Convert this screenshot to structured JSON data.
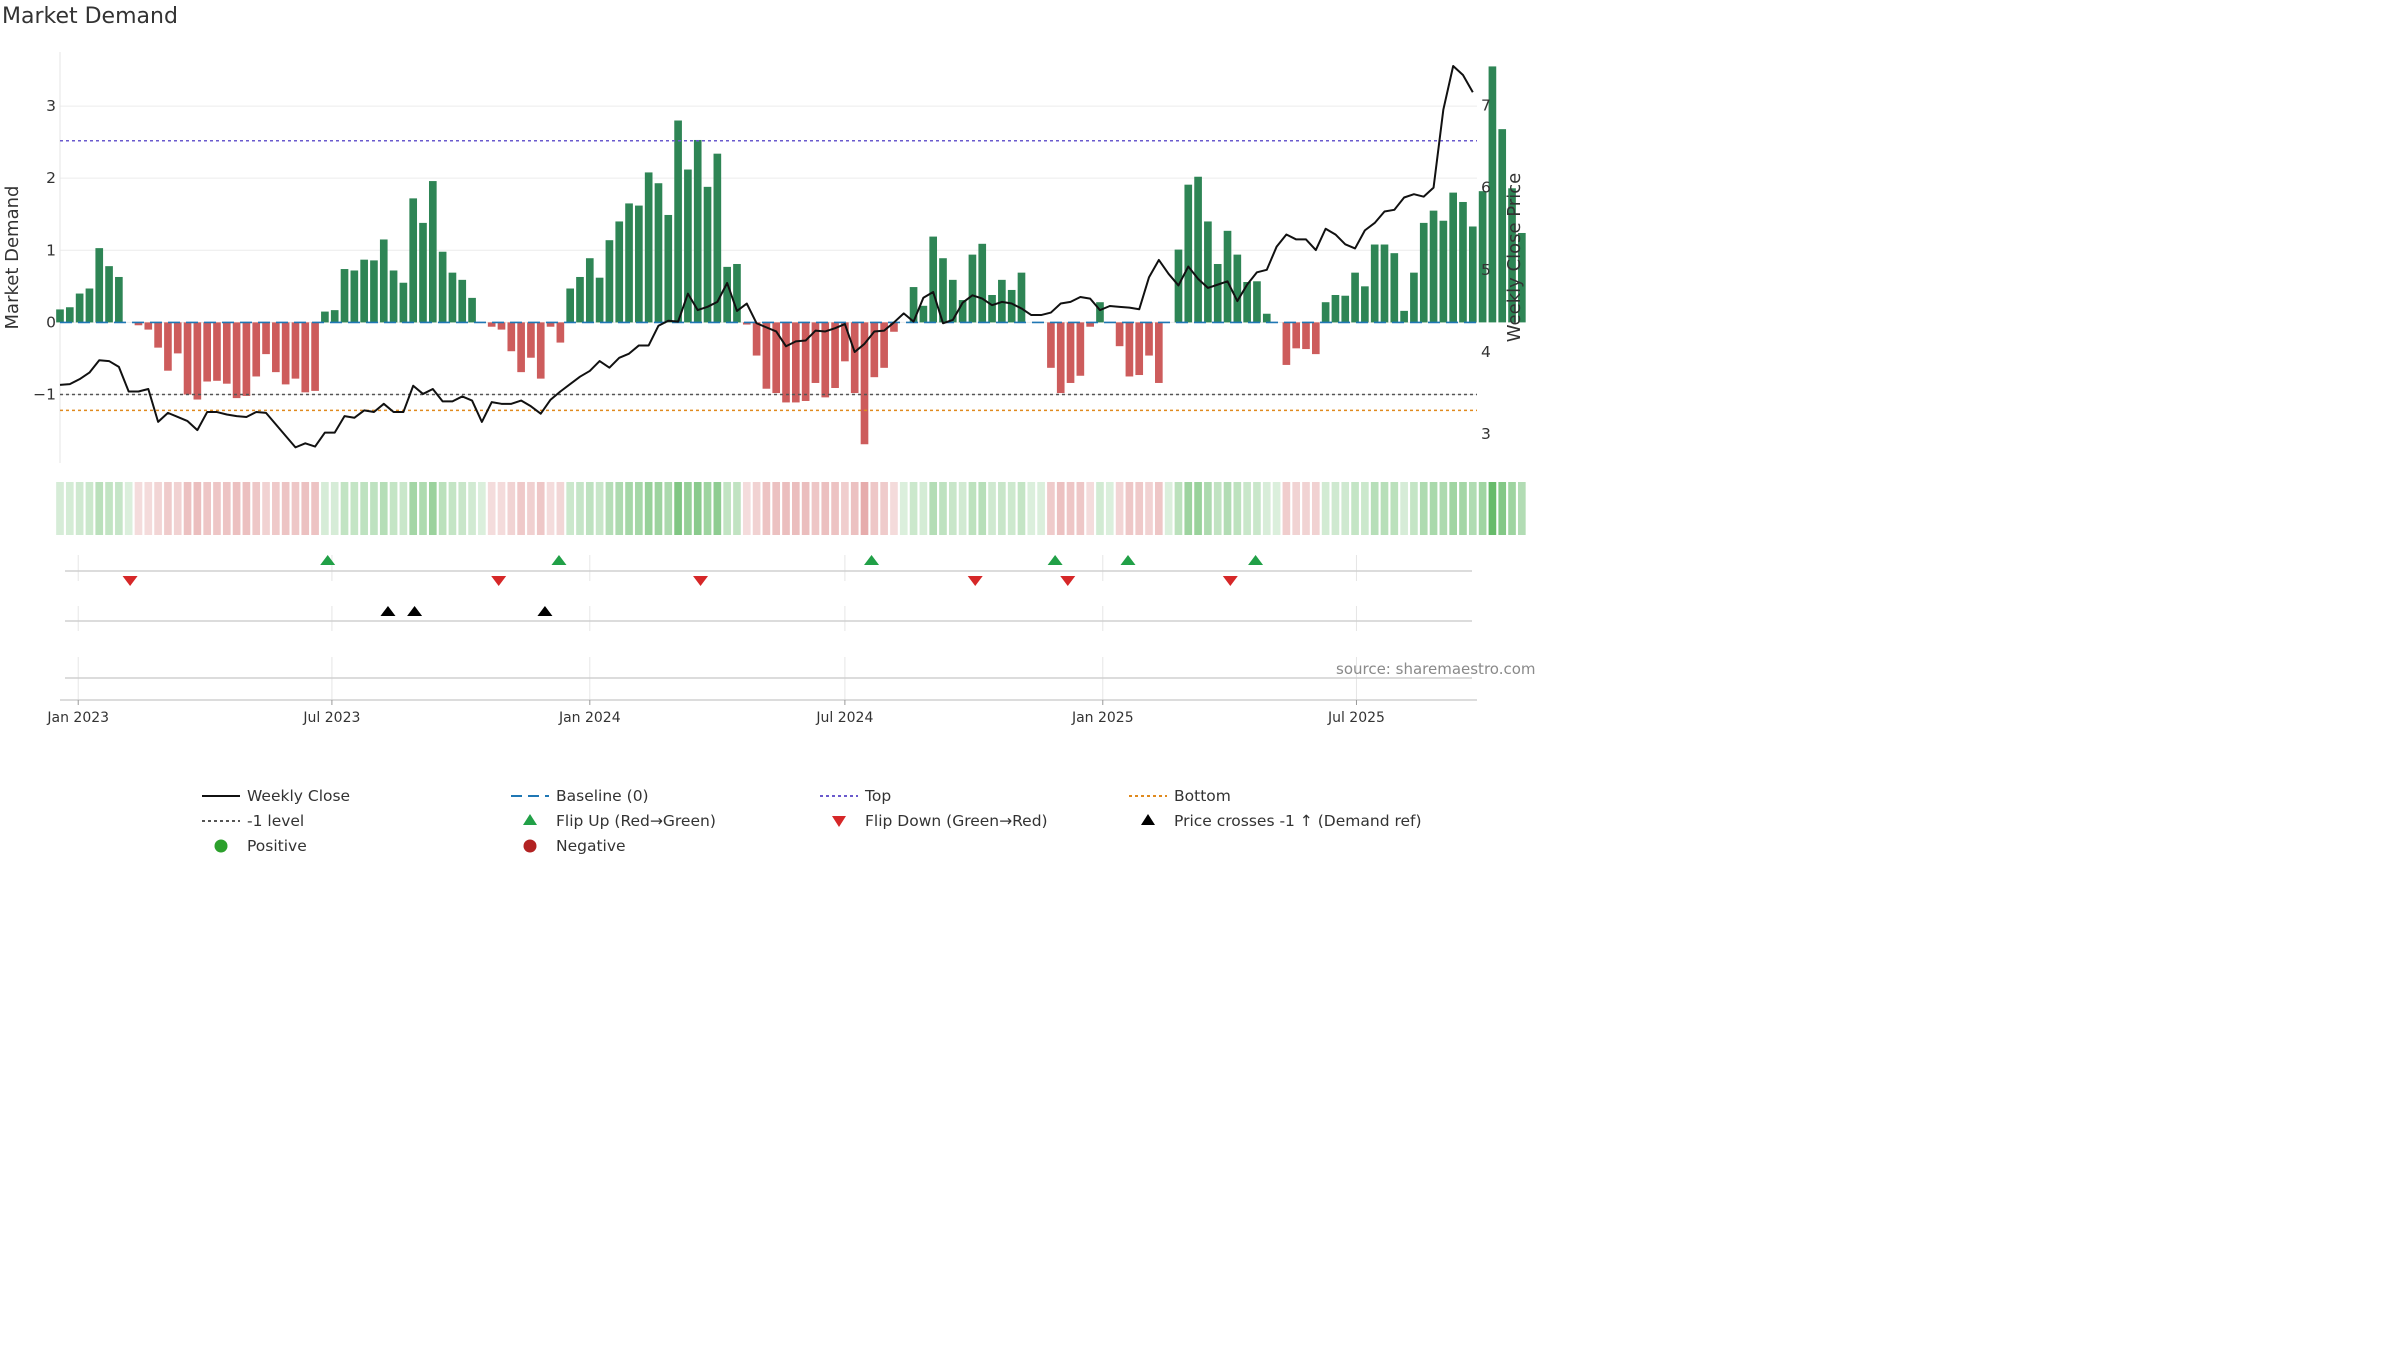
{
  "chart_data": {
    "type": "bar+line",
    "title": "Market Demand",
    "ylabel_left": "Market Demand",
    "ylabel_right": "Weekly Close Price",
    "left_axis": {
      "ylim": [
        -1.95,
        3.75
      ],
      "ticks": [
        -1,
        0,
        1,
        2,
        3
      ],
      "tick_labels": [
        "−1",
        "0",
        "1",
        "2",
        "3"
      ]
    },
    "right_axis": {
      "ylim": [
        2.65,
        7.65
      ],
      "ticks": [
        3,
        4,
        5,
        6,
        7
      ],
      "tick_labels": [
        "3",
        "4",
        "5",
        "6",
        "7"
      ]
    },
    "x_range": [
      "2022-12-19",
      "2025-09-25"
    ],
    "x_ticks": [
      {
        "date": "2023-01-01",
        "label": "Jan 2023"
      },
      {
        "date": "2023-07-01",
        "label": "Jul 2023"
      },
      {
        "date": "2024-01-01",
        "label": "Jan 2024"
      },
      {
        "date": "2024-07-01",
        "label": "Jul 2024"
      },
      {
        "date": "2025-01-01",
        "label": "Jan 2025"
      },
      {
        "date": "2025-07-01",
        "label": "Jul 2025"
      }
    ],
    "start_week": "2022-12-19",
    "reference_lines": {
      "top": 2.52,
      "minus_one": -1.0,
      "bottom": -1.22,
      "baseline": 0
    },
    "demand": [
      0.18,
      0.21,
      0.4,
      0.47,
      1.03,
      0.78,
      0.63,
      0.0,
      -0.04,
      -0.1,
      -0.35,
      -0.67,
      -0.43,
      -1.0,
      -1.07,
      -0.82,
      -0.81,
      -0.85,
      -1.05,
      -1.02,
      -0.75,
      -0.44,
      -0.69,
      -0.86,
      -0.78,
      -0.97,
      -0.95,
      0.15,
      0.17,
      0.74,
      0.72,
      0.87,
      0.86,
      1.15,
      0.72,
      0.55,
      1.72,
      1.38,
      1.96,
      0.98,
      0.69,
      0.59,
      0.34,
      0.0,
      -0.06,
      -0.1,
      -0.4,
      -0.69,
      -0.49,
      -0.78,
      -0.06,
      -0.28,
      0.47,
      0.63,
      0.89,
      0.62,
      1.14,
      1.4,
      1.65,
      1.62,
      2.08,
      1.93,
      1.49,
      2.8,
      2.12,
      2.53,
      1.88,
      2.34,
      0.77,
      0.81,
      -0.03,
      -0.46,
      -0.92,
      -0.98,
      -1.11,
      -1.11,
      -1.09,
      -0.84,
      -1.04,
      -0.91,
      -0.54,
      -0.98,
      -1.69,
      -0.76,
      -0.63,
      -0.13,
      0.0,
      0.49,
      0.23,
      1.19,
      0.89,
      0.59,
      0.31,
      0.94,
      1.09,
      0.38,
      0.59,
      0.45,
      0.69,
      0.0,
      0.0,
      -0.63,
      -0.98,
      -0.84,
      -0.74,
      -0.06,
      0.28,
      0.0,
      -0.33,
      -0.75,
      -0.73,
      -0.46,
      -0.84,
      0.0,
      1.01,
      1.91,
      2.02,
      1.4,
      0.81,
      1.27,
      0.94,
      0.56,
      0.57,
      0.12,
      0.0,
      -0.59,
      -0.36,
      -0.37,
      -0.44,
      0.28,
      0.38,
      0.37,
      0.69,
      0.5,
      1.08,
      1.08,
      0.96,
      0.16,
      0.69,
      1.38,
      1.55,
      1.41,
      1.8,
      1.67,
      1.33,
      1.82,
      3.55,
      2.68,
      1.86,
      1.24
    ],
    "weekly_close": [
      3.6,
      3.61,
      3.67,
      3.75,
      3.9,
      3.89,
      3.82,
      3.52,
      3.52,
      3.55,
      3.15,
      3.26,
      3.21,
      3.16,
      3.05,
      3.27,
      3.27,
      3.24,
      3.22,
      3.21,
      3.27,
      3.26,
      3.12,
      2.98,
      2.84,
      2.89,
      2.85,
      3.02,
      3.02,
      3.22,
      3.2,
      3.29,
      3.27,
      3.37,
      3.27,
      3.27,
      3.59,
      3.49,
      3.55,
      3.4,
      3.4,
      3.46,
      3.41,
      3.15,
      3.39,
      3.37,
      3.37,
      3.41,
      3.34,
      3.25,
      3.42,
      3.52,
      3.61,
      3.7,
      3.77,
      3.89,
      3.81,
      3.93,
      3.98,
      4.08,
      4.08,
      4.32,
      4.38,
      4.37,
      4.71,
      4.51,
      4.55,
      4.61,
      4.84,
      4.5,
      4.59,
      4.35,
      4.3,
      4.25,
      4.07,
      4.13,
      4.14,
      4.26,
      4.25,
      4.29,
      4.34,
      4.0,
      4.1,
      4.25,
      4.26,
      4.36,
      4.47,
      4.37,
      4.66,
      4.73,
      4.35,
      4.39,
      4.6,
      4.69,
      4.65,
      4.57,
      4.61,
      4.59,
      4.53,
      4.45,
      4.45,
      4.48,
      4.59,
      4.61,
      4.67,
      4.65,
      4.51,
      4.56,
      4.55,
      4.54,
      4.52,
      4.91,
      5.12,
      4.95,
      4.81,
      5.04,
      4.89,
      4.78,
      4.82,
      4.86,
      4.62,
      4.82,
      4.97,
      5.0,
      5.28,
      5.43,
      5.37,
      5.37,
      5.24,
      5.5,
      5.43,
      5.31,
      5.26,
      5.48,
      5.57,
      5.71,
      5.73,
      5.88,
      5.92,
      5.89,
      6.0,
      6.95,
      7.48,
      7.37,
      7.16
    ],
    "flip_up_dates": [
      "2023-06-28",
      "2023-12-10",
      "2024-07-20",
      "2024-11-28",
      "2025-01-19",
      "2025-04-20"
    ],
    "flip_down_dates": [
      "2023-02-07",
      "2023-10-28",
      "2024-03-20",
      "2024-10-02",
      "2024-12-07",
      "2025-04-02"
    ],
    "price_cross_dates": [
      "2023-08-10",
      "2023-08-29",
      "2023-11-30"
    ],
    "series": [
      {
        "name": "Weekly Close"
      },
      {
        "name": "Baseline (0)"
      },
      {
        "name": "Top"
      },
      {
        "name": "Bottom"
      },
      {
        "name": "-1 level"
      },
      {
        "name": "Flip Up (Red→Green)"
      },
      {
        "name": "Flip Down (Green→Red)"
      },
      {
        "name": "Price crosses -1 ↑ (Demand ref)"
      },
      {
        "name": "Positive"
      },
      {
        "name": "Negative"
      }
    ]
  },
  "colors": {
    "positive": "#2e8555",
    "negative": "#cd5c5c",
    "price_line": "#111111",
    "baseline": "#1f77b4",
    "top": "#6a5acd",
    "bottom": "#e08a1e",
    "minus_one": "#555555",
    "flip_up": "#21a047",
    "flip_down": "#d62728",
    "cross": "#000000",
    "legend_positive": "#2ca02c",
    "legend_negative": "#b22222"
  },
  "legend": [
    {
      "label": "Weekly Close",
      "symbol": "solid-line"
    },
    {
      "label": "Baseline (0)",
      "symbol": "dash-line"
    },
    {
      "label": "Top",
      "symbol": "dotted-line"
    },
    {
      "label": "Bottom",
      "symbol": "dotted-line"
    },
    {
      "label": "-1 level",
      "symbol": "dotted-line"
    },
    {
      "label": "Flip Up (Red→Green)",
      "symbol": "triangle-up"
    },
    {
      "label": "Flip Down (Green→Red)",
      "symbol": "triangle-down"
    },
    {
      "label": "Price crosses -1 ↑ (Demand ref)",
      "symbol": "triangle-up"
    },
    {
      "label": "Positive",
      "symbol": "circle"
    },
    {
      "label": "Negative",
      "symbol": "circle"
    }
  ],
  "source": "source: sharemaestro.com"
}
